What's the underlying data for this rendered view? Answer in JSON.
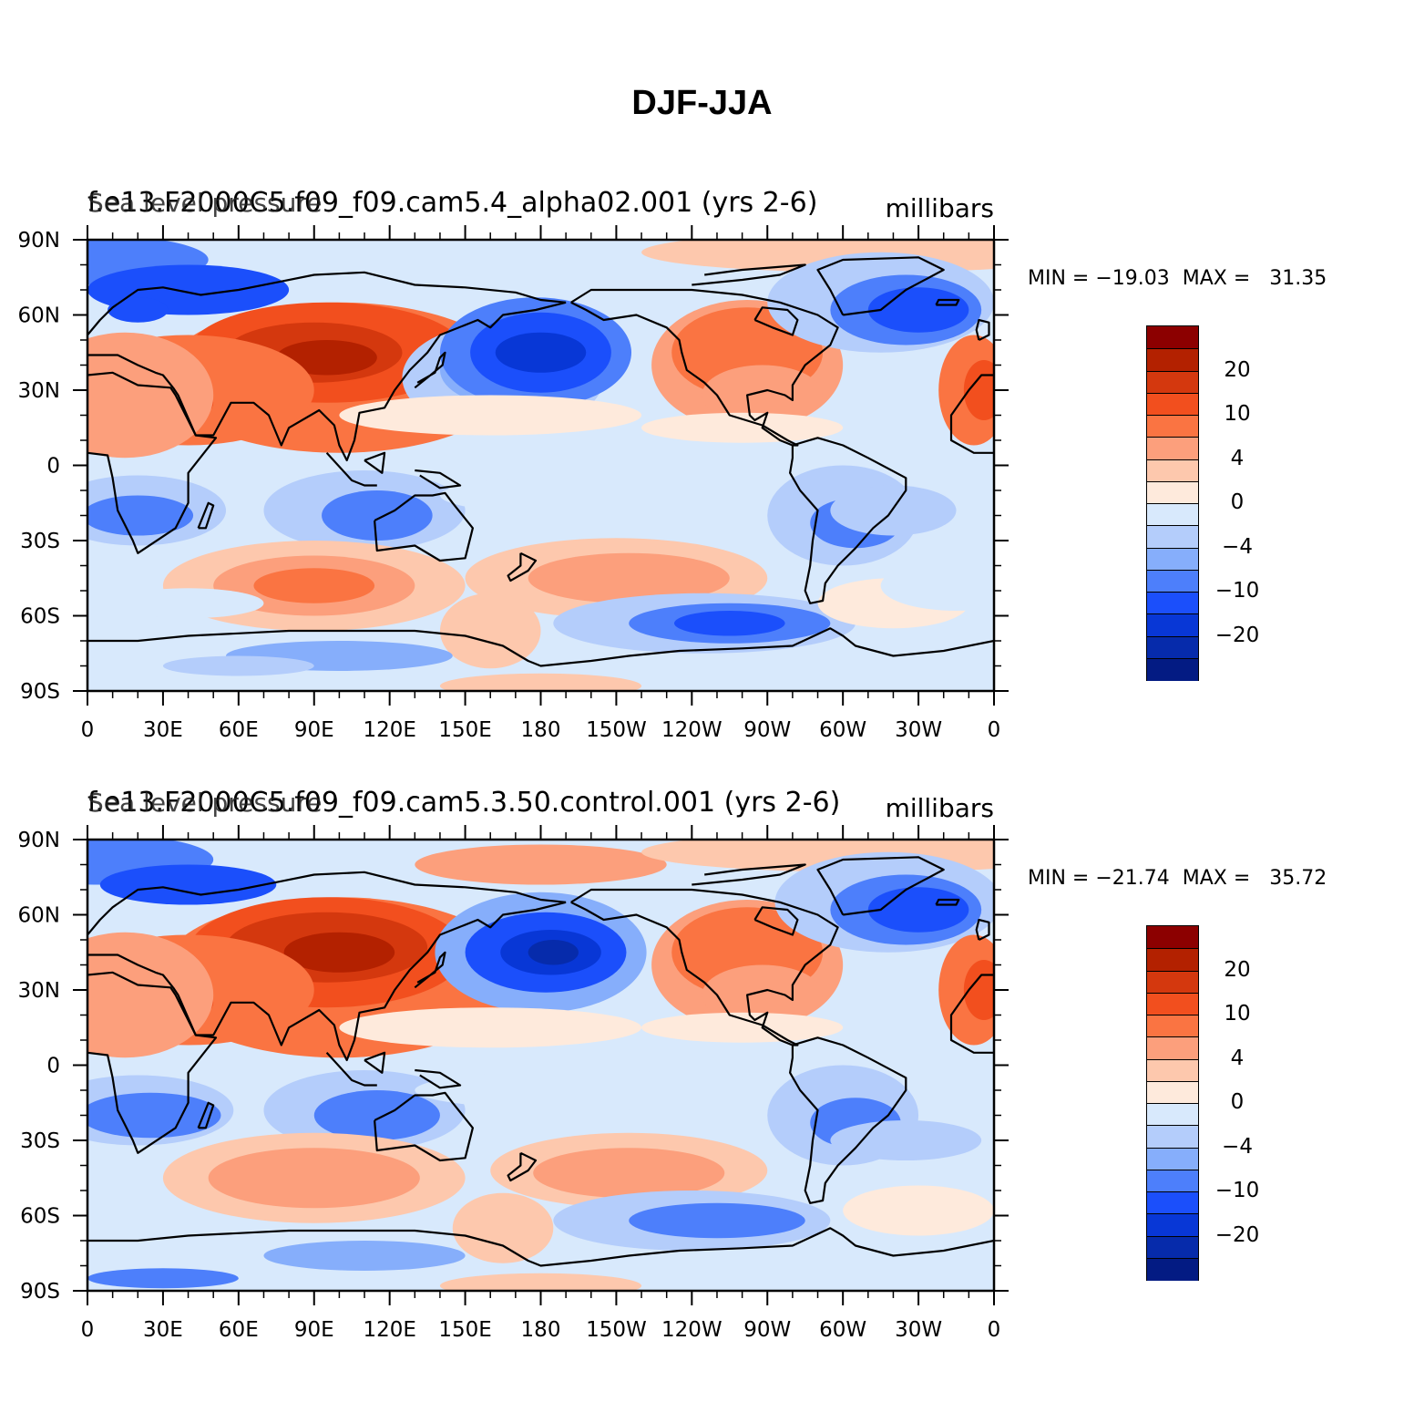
{
  "title": "DJF-JJA",
  "colors": {
    "levels": [
      "#8c0000",
      "#b32100",
      "#d4380e",
      "#f24f1e",
      "#fa7442",
      "#fc9f7c",
      "#fdc8ad",
      "#feeadc",
      "#d8e9fc",
      "#b4cdfb",
      "#86aefb",
      "#4d7ffb",
      "#1b4ffb",
      "#0837d6",
      "#062bab",
      "#031b83"
    ],
    "land_outline": "#000000"
  },
  "colorbar_labels": [
    "20",
    "10",
    "4",
    "0",
    "−4",
    "−10",
    "−20"
  ],
  "lon_ticks": [
    "0",
    "30E",
    "60E",
    "90E",
    "120E",
    "150E",
    "180",
    "150W",
    "120W",
    "90W",
    "60W",
    "30W",
    "0"
  ],
  "lat_ticks": [
    "90N",
    "60N",
    "30N",
    "0",
    "30S",
    "60S",
    "90S"
  ],
  "panels": [
    {
      "case": "f.e13.F2000C5.f09_f09.cam5.4_alpha02.001 (yrs 2-6)",
      "variable": "Sea level pressure",
      "units": "millibars",
      "min_label": "MIN = −19.03",
      "max_label": "MAX =   31.35"
    },
    {
      "case": "f.e13.F2000C5.f09_f09.cam5.3.50.control.001 (yrs 2-6)",
      "variable": "Sea level pressure",
      "units": "millibars",
      "min_label": "MIN = −21.74",
      "max_label": "MAX =   35.72"
    }
  ],
  "chart_data": [
    {
      "type": "heatmap",
      "title": "f.e13.F2000C5.f09_f09.cam5.4_alpha02.001 (yrs 2-6)",
      "variable": "Sea level pressure",
      "units": "millibars",
      "x_range": [
        0,
        360
      ],
      "y_range": [
        -90,
        90
      ],
      "min": -19.03,
      "max": 31.35,
      "levels": [
        -25,
        -20,
        -15,
        -10,
        -6,
        -4,
        -2,
        0,
        2,
        4,
        6,
        10,
        15,
        20,
        25
      ]
    },
    {
      "type": "heatmap",
      "title": "f.e13.F2000C5.f09_f09.cam5.3.50.control.001 (yrs 2-6)",
      "variable": "Sea level pressure",
      "units": "millibars",
      "x_range": [
        0,
        360
      ],
      "y_range": [
        -90,
        90
      ],
      "min": -21.74,
      "max": 35.72,
      "levels": [
        -25,
        -20,
        -15,
        -10,
        -6,
        -4,
        -2,
        0,
        2,
        4,
        6,
        10,
        15,
        20,
        25
      ]
    }
  ]
}
